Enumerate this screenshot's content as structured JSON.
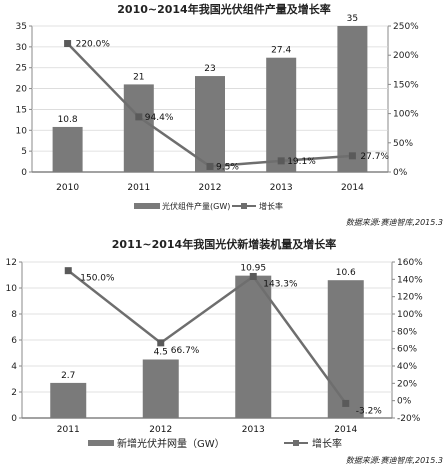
{
  "chart_data": [
    {
      "type": "bar",
      "title": "2010~2014年我国光伏组件产量及增长率",
      "categories": [
        "2010",
        "2011",
        "2012",
        "2013",
        "2014"
      ],
      "series": [
        {
          "name": "光伏组件产量(GW)",
          "type": "bar",
          "axis": "left",
          "values": [
            10.8,
            21,
            23,
            27.4,
            35
          ]
        },
        {
          "name": "增长率",
          "type": "line",
          "axis": "right",
          "values": [
            220.0,
            94.4,
            9.5,
            19.1,
            27.7
          ]
        }
      ],
      "value_labels": [
        "10.8",
        "21",
        "23",
        "27.4",
        "35"
      ],
      "rate_labels": [
        "220.0%",
        "94.4%",
        "9.5%",
        "19.1%",
        "27.7%"
      ],
      "left_ticks": [
        "0",
        "5",
        "10",
        "15",
        "20",
        "25",
        "30",
        "35"
      ],
      "right_ticks": [
        "0%",
        "50%",
        "100%",
        "150%",
        "200%",
        "250%"
      ],
      "ylim_left": [
        0,
        35
      ],
      "ylim_right": [
        0,
        250
      ],
      "legend_position": "bottom",
      "source": "数据来源:赛迪智库,2015.3"
    },
    {
      "type": "bar",
      "title": "2011~2014年我国光伏新增装机量及增长率",
      "categories": [
        "2011",
        "2012",
        "2013",
        "2014"
      ],
      "series": [
        {
          "name": "新增光伏并网量（GW）",
          "type": "bar",
          "axis": "left",
          "values": [
            2.7,
            4.5,
            10.95,
            10.6
          ]
        },
        {
          "name": "增长率",
          "type": "line",
          "axis": "right",
          "values": [
            150.0,
            66.7,
            143.3,
            -3.2
          ]
        }
      ],
      "value_labels": [
        "2.7",
        "4.5",
        "10.95",
        "10.6"
      ],
      "rate_labels": [
        "150.0%",
        "66.7%",
        "143.3%",
        "-3.2%"
      ],
      "left_ticks": [
        "0",
        "2",
        "4",
        "6",
        "8",
        "10",
        "12"
      ],
      "right_ticks": [
        "-20%",
        "0%",
        "20%",
        "40%",
        "60%",
        "80%",
        "100%",
        "120%",
        "140%",
        "160%"
      ],
      "ylim_left": [
        0,
        12
      ],
      "ylim_right": [
        -20,
        160
      ],
      "legend_position": "bottom",
      "source": "数据来源:赛迪智库,2015.3"
    }
  ]
}
